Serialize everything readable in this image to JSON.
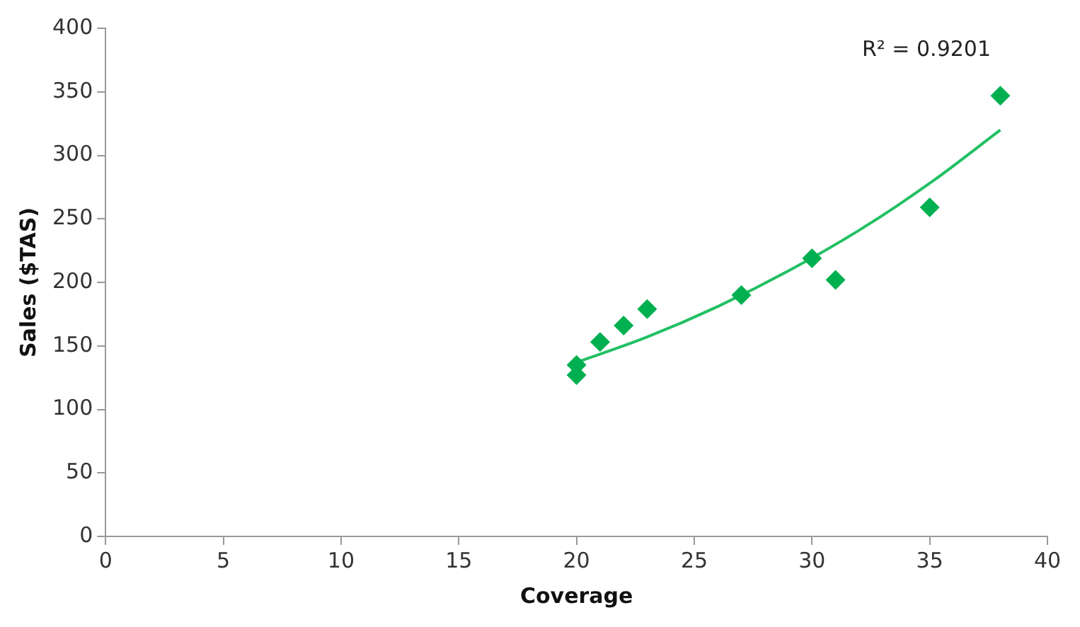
{
  "chart_data": {
    "type": "scatter",
    "xlabel": "Coverage",
    "ylabel": "Sales ($TAS)",
    "annotations": [
      "R² = 0.9201"
    ],
    "xlim": [
      0,
      40
    ],
    "xticks": [
      0,
      5,
      10,
      15,
      20,
      25,
      30,
      35,
      40
    ],
    "ylim": [
      0,
      400
    ],
    "yticks": [
      0,
      50,
      100,
      150,
      200,
      250,
      300,
      350,
      400
    ],
    "grid": false,
    "legend": false,
    "marker": "diamond",
    "series": [
      {
        "color": "#00b050",
        "x": [
          20,
          20,
          21,
          22,
          23,
          27,
          30,
          31,
          35,
          38
        ],
        "values": [
          135,
          127,
          153,
          166,
          179,
          190,
          219,
          202,
          259,
          347
        ]
      },
      {
        "type": "line",
        "color": "#22c063",
        "marker": "none",
        "x": [
          20,
          23,
          26,
          29,
          32,
          35,
          38
        ],
        "values": [
          137,
          157,
          181,
          209,
          241,
          278,
          320
        ]
      }
    ]
  }
}
